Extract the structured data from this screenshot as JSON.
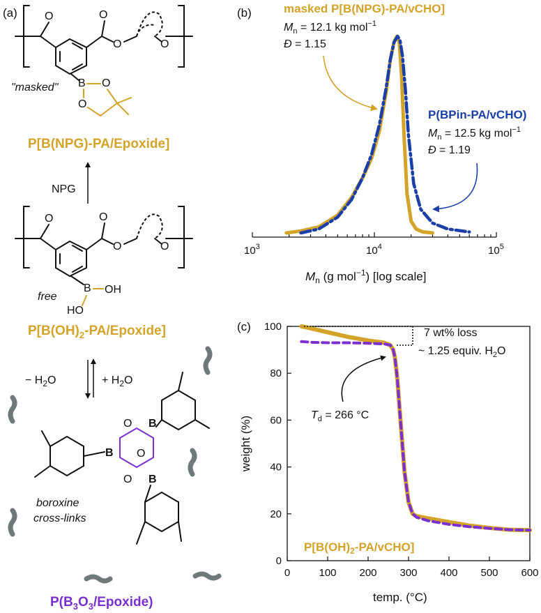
{
  "panel_a": {
    "label": "(a)",
    "masked_tag": "\"masked\"",
    "masked_name": "P[B(NPG)-PA/Epoxide]",
    "arrow_reagent": "NPG",
    "free_tag": "free",
    "free_name_1": "P[B(OH)",
    "free_name_sub": "2",
    "free_name_2": "-PA/Epoxide]",
    "minus_water": "− H",
    "plus_water": "+ H",
    "water_sub": "2",
    "water_o": "O",
    "boroxine_1": "boroxine",
    "boroxine_2": "cross-links",
    "b3o3_1": "P(B",
    "b3o3_sub1": "3",
    "b3o3_2": "O",
    "b3o3_sub2": "3",
    "b3o3_3": "/Epoxide)",
    "atom_B": "B",
    "atom_O": "O",
    "atom_OH": "OH",
    "atom_HO": "HO",
    "colors": {
      "gold": "#D4A42A",
      "purple": "#7B2FD0",
      "gray": "#6E7A7A"
    }
  },
  "panel_b": {
    "label": "(b)",
    "masked_title": "masked P[B(NPG)-PA/vCHO]",
    "masked_mn_val": " = 12.1 kg mol",
    "masked_d_val": " = 1.15",
    "bpin_title": "P(BPin-PA/vCHO)",
    "bpin_mn_val": " = 12.5 kg mol",
    "bpin_d_val": " = 1.19",
    "mn_symbol": "M",
    "mn_sub": "n",
    "d_symbol": "Đ",
    "sup_neg1": "−1",
    "colors": {
      "masked": "#D4A42A",
      "bpin": "#1B3FA8"
    }
  },
  "panel_c": {
    "label": "(c)",
    "loss_line1": "7 wt% loss",
    "loss_line2": "~ 1.25 equiv. H",
    "loss_sub": "2",
    "loss_o": "O",
    "td_symbol": "T",
    "td_sub": "d",
    "td_val": " = 266 °C",
    "series_label_1": "P[B(OH)",
    "series_label_sub": "2",
    "series_label_2": "-PA/vCHO]",
    "colors": {
      "gold": "#D4A42A",
      "purple": "#7B2FD0"
    }
  },
  "chart_data": [
    {
      "type": "line",
      "xlabel_main": "M",
      "xlabel_sub": "n",
      "xlabel_rest": " (g mol",
      "xlabel_sup": "−1",
      "xlabel_end": ") [log scale]",
      "xscale": "log",
      "xlim": [
        1000,
        100000
      ],
      "x_ticks": [
        {
          "base": "10",
          "exp": "3",
          "value": 1000
        },
        {
          "base": "10",
          "exp": "4",
          "value": 10000
        },
        {
          "base": "10",
          "exp": "5",
          "value": 100000
        }
      ],
      "series": [
        {
          "name": "masked P[B(NPG)-PA/vCHO]",
          "style": "solid",
          "color": "#D4A42A",
          "x": [
            1900,
            2500,
            3500,
            5000,
            6500,
            8000,
            9500,
            11000,
            12500,
            13500,
            14500,
            15300,
            16000,
            16700,
            17500,
            18500,
            20000,
            22000,
            25000,
            30000
          ],
          "y": [
            0.0,
            0.01,
            0.03,
            0.09,
            0.18,
            0.28,
            0.38,
            0.52,
            0.72,
            0.88,
            0.97,
            1.0,
            0.97,
            0.8,
            0.5,
            0.2,
            0.06,
            0.02,
            0.005,
            0.0
          ]
        },
        {
          "name": "P(BPin-PA/vCHO)",
          "style": "dash-dot",
          "color": "#1B3FA8",
          "x": [
            2500,
            3500,
            5000,
            6500,
            8000,
            9500,
            11000,
            12500,
            13500,
            14500,
            15500,
            16200,
            17000,
            18000,
            19000,
            21000,
            24000,
            30000,
            40000,
            60000
          ],
          "y": [
            0.0,
            0.02,
            0.08,
            0.17,
            0.28,
            0.4,
            0.55,
            0.74,
            0.88,
            0.97,
            1.0,
            0.98,
            0.9,
            0.72,
            0.5,
            0.25,
            0.12,
            0.05,
            0.02,
            0.005
          ]
        }
      ]
    },
    {
      "type": "line",
      "xlabel": "temp. (°C)",
      "ylabel": "weight (%)",
      "xlim": [
        0,
        600
      ],
      "ylim": [
        0,
        100
      ],
      "x_ticks": [
        0,
        100,
        200,
        300,
        400,
        500,
        600
      ],
      "y_ticks": [
        0,
        20,
        40,
        60,
        80,
        100
      ],
      "series": [
        {
          "name": "gold",
          "style": "solid",
          "color": "#D4A42A",
          "x": [
            35,
            50,
            100,
            150,
            200,
            240,
            255,
            262,
            266,
            272,
            280,
            290,
            300,
            310,
            320,
            350,
            400,
            450,
            500,
            550,
            600
          ],
          "y": [
            100,
            99.5,
            97.5,
            95.5,
            94,
            93,
            92,
            90,
            87,
            78,
            60,
            38,
            25,
            20,
            19,
            18,
            16.5,
            15,
            14,
            13.2,
            13
          ]
        },
        {
          "name": "purple",
          "style": "dashed",
          "color": "#7B2FD0",
          "x": [
            35,
            60,
            100,
            150,
            200,
            240,
            255,
            262,
            266,
            272,
            280,
            290,
            300,
            310,
            320,
            350,
            400,
            450,
            500,
            550,
            600
          ],
          "y": [
            93.5,
            93.2,
            93,
            93,
            92.8,
            92.5,
            92,
            90,
            87,
            78,
            60,
            38,
            25,
            20,
            18.5,
            17,
            15.5,
            14.5,
            13.8,
            13.2,
            13
          ]
        }
      ]
    }
  ]
}
